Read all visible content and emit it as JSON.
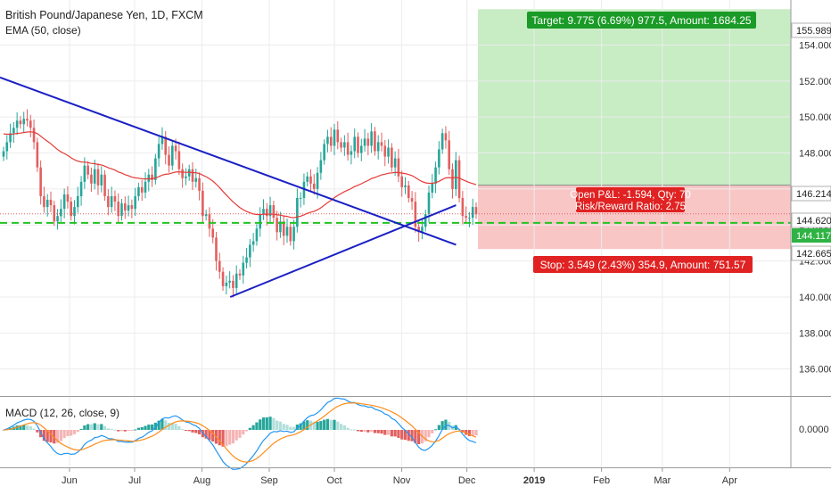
{
  "header": {
    "title": "British Pound/Japanese Yen, 1D, FXCM",
    "indicator": "EMA (50, close)",
    "macd_label": "MACD (12, 26, close, 9)"
  },
  "position": {
    "target_label": "Target: 9.775 (6.69%) 977.5, Amount: 1684.25",
    "stop_label": "Stop: 3.549 (2.43%) 354.9, Amount: 751.57",
    "pnl_label": "Open P&L: -1.594, Qty: 70",
    "rr_label": "Risk/Reward Ratio: 2.75",
    "entry": 146.214,
    "target": 155.989,
    "stop": 142.665
  },
  "price_tags": {
    "target": "155.989",
    "entry": "146.214",
    "last": "144.620",
    "horizontal_level": "144.117",
    "stop": "142.665"
  },
  "colors": {
    "up": "#26a69a",
    "down": "#e35f5f",
    "ema": "#e53935",
    "trendline": "#1a1fc4",
    "level": "#22c322",
    "profit_zone": "#c8ecc4",
    "loss_zone": "#f9c6c6",
    "macd_line": "#2196f3",
    "signal_line": "#ff8c1a"
  },
  "chart_data": {
    "type": "candlestick",
    "x_axis_labels": [
      "Jun",
      "Jul",
      "Aug",
      "Sep",
      "Oct",
      "Nov",
      "Dec",
      "2019",
      "Feb",
      "Mar",
      "Apr"
    ],
    "y_axis_labels": [
      "136.000",
      "138.000",
      "140.000",
      "142.000",
      "144.000",
      "146.000",
      "148.000",
      "150.000",
      "152.000",
      "154.000"
    ],
    "ylim": [
      134.5,
      156.5
    ],
    "macd_axis_label": "0.0000",
    "horizontal_line": 144.117,
    "last_price": 144.62,
    "trendlines": [
      {
        "name": "descending",
        "from": [
          "2018-04-30",
          152.2
        ],
        "to": [
          "2018-11-26",
          142.9
        ]
      },
      {
        "name": "ascending",
        "from": [
          "2018-08-14",
          140.0
        ],
        "to": [
          "2018-11-26",
          145.1
        ]
      }
    ],
    "closes": [
      148.1,
      148.6,
      149.1,
      149.4,
      149.8,
      149.6,
      149.9,
      149.8,
      149.4,
      148.6,
      147.2,
      145.6,
      145.0,
      145.4,
      145.1,
      144.2,
      144.5,
      144.9,
      145.7,
      145.3,
      144.5,
      145.0,
      145.6,
      146.4,
      147.3,
      146.8,
      146.3,
      147.1,
      146.2,
      146.8,
      145.6,
      145.0,
      145.6,
      145.3,
      144.5,
      145.2,
      144.8,
      145.1,
      144.9,
      145.6,
      146.1,
      145.8,
      146.4,
      146.8,
      146.5,
      147.7,
      148.5,
      148.9,
      147.9,
      147.3,
      148.4,
      148.1,
      147.1,
      146.6,
      146.7,
      147.1,
      146.4,
      146.6,
      145.9,
      144.5,
      144.6,
      143.8,
      143.3,
      142.0,
      141.4,
      140.6,
      140.8,
      140.9,
      140.5,
      141.3,
      141.2,
      141.9,
      142.2,
      142.9,
      143.1,
      143.8,
      144.6,
      144.9,
      144.5,
      145.1,
      144.4,
      143.6,
      144.2,
      143.4,
      143.9,
      143.1,
      143.9,
      145.5,
      145.5,
      146.4,
      146.7,
      146.3,
      146.0,
      146.9,
      147.6,
      148.5,
      148.9,
      148.4,
      149.3,
      148.6,
      148.3,
      148.6,
      147.9,
      148.1,
      148.9,
      148.0,
      148.4,
      148.8,
      148.4,
      149.2,
      148.1,
      148.6,
      148.4,
      147.8,
      148.3,
      147.2,
      147.7,
      146.7,
      146.1,
      146.2,
      145.5,
      145.3,
      143.9,
      143.6,
      143.9,
      144.6,
      145.8,
      146.3,
      147.2,
      148.2,
      149.1,
      148.7,
      147.1,
      146.0,
      147.6,
      145.5,
      144.5,
      144.4,
      144.4,
      145.0,
      144.6
    ]
  }
}
